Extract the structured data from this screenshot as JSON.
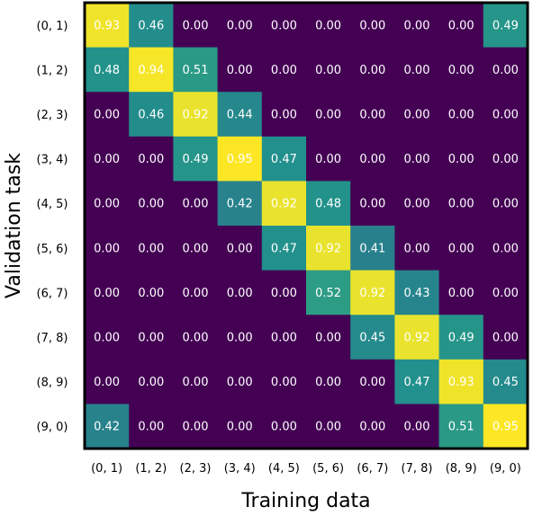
{
  "chart_data": {
    "type": "heatmap",
    "title": "",
    "xlabel": "Training data",
    "ylabel": "Validation task",
    "x_categories": [
      "(0, 1)",
      "(1, 2)",
      "(2, 3)",
      "(3, 4)",
      "(4, 5)",
      "(5, 6)",
      "(6, 7)",
      "(7, 8)",
      "(8, 9)",
      "(9, 0)"
    ],
    "y_categories": [
      "(0, 1)",
      "(1, 2)",
      "(2, 3)",
      "(3, 4)",
      "(4, 5)",
      "(5, 6)",
      "(6, 7)",
      "(7, 8)",
      "(8, 9)",
      "(9, 0)"
    ],
    "values": [
      [
        0.93,
        0.46,
        0.0,
        0.0,
        0.0,
        0.0,
        0.0,
        0.0,
        0.0,
        0.49
      ],
      [
        0.48,
        0.94,
        0.51,
        0.0,
        0.0,
        0.0,
        0.0,
        0.0,
        0.0,
        0.0
      ],
      [
        0.0,
        0.46,
        0.92,
        0.44,
        0.0,
        0.0,
        0.0,
        0.0,
        0.0,
        0.0
      ],
      [
        0.0,
        0.0,
        0.49,
        0.95,
        0.47,
        0.0,
        0.0,
        0.0,
        0.0,
        0.0
      ],
      [
        0.0,
        0.0,
        0.0,
        0.42,
        0.92,
        0.48,
        0.0,
        0.0,
        0.0,
        0.0
      ],
      [
        0.0,
        0.0,
        0.0,
        0.0,
        0.47,
        0.92,
        0.41,
        0.0,
        0.0,
        0.0
      ],
      [
        0.0,
        0.0,
        0.0,
        0.0,
        0.0,
        0.52,
        0.92,
        0.43,
        0.0,
        0.0
      ],
      [
        0.0,
        0.0,
        0.0,
        0.0,
        0.0,
        0.0,
        0.45,
        0.92,
        0.49,
        0.0
      ],
      [
        0.0,
        0.0,
        0.0,
        0.0,
        0.0,
        0.0,
        0.0,
        0.47,
        0.93,
        0.45
      ],
      [
        0.42,
        0.0,
        0.0,
        0.0,
        0.0,
        0.0,
        0.0,
        0.0,
        0.51,
        0.95
      ]
    ],
    "value_range": [
      0,
      0.95
    ],
    "colormap": "viridis",
    "grid": false,
    "colors": {
      "low": "#440154",
      "mid": "#21918c",
      "high": "#fde725",
      "frame": "#000000",
      "cell_text": "#ffffff"
    }
  }
}
